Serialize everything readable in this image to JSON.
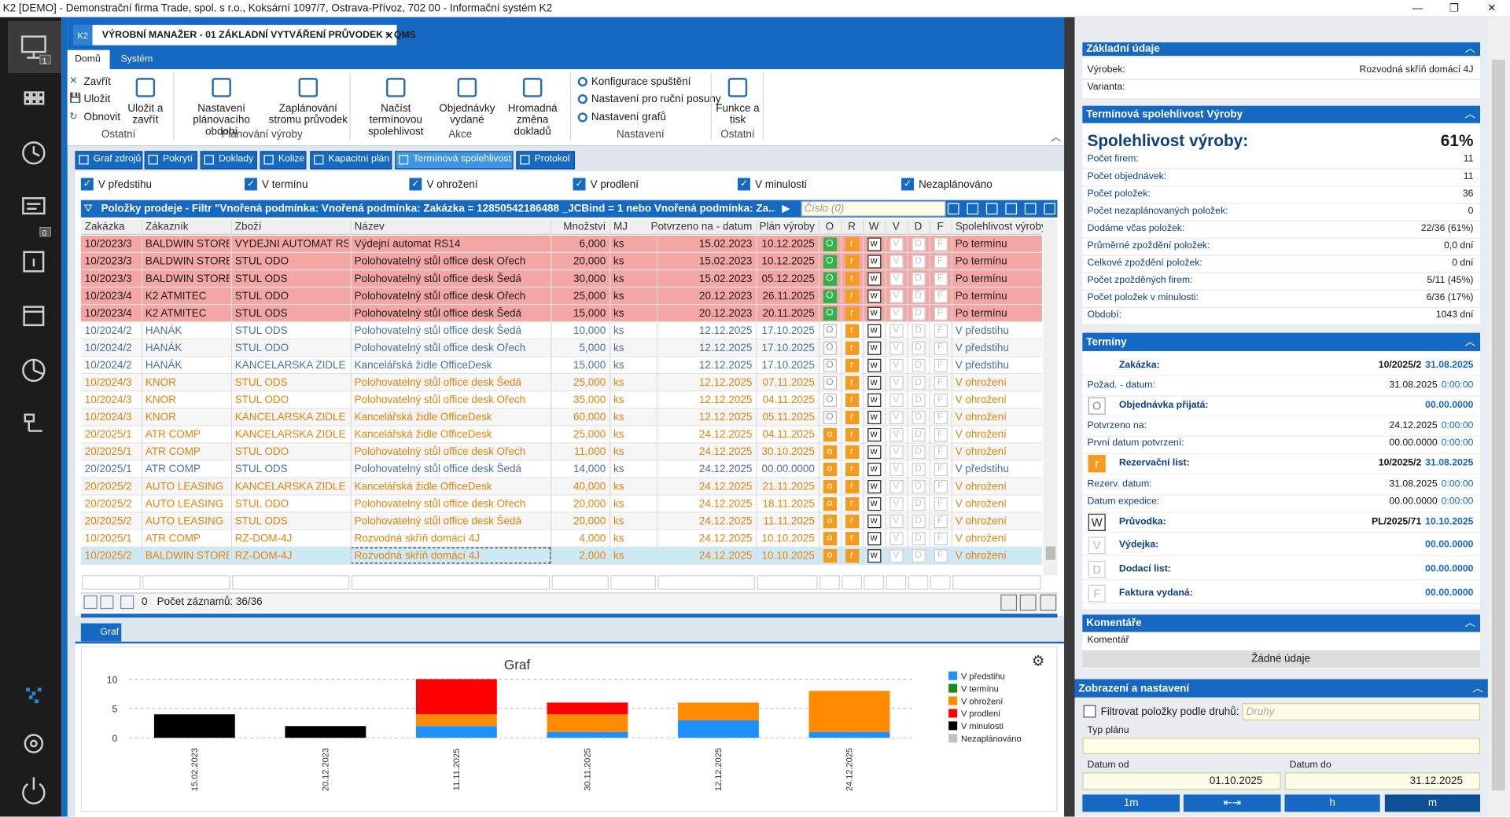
{
  "window": {
    "title": "K2 [DEMO] - Demonstrační firma Trade, spol. s r.o., Koksární 1097/7, Ostrava-Přívoz, 702 00 - Informační systém K2"
  },
  "sidebar": {
    "badges": [
      "1",
      "0"
    ]
  },
  "document_tab": {
    "badge": "K2",
    "title": "VÝROBNÍ MANAŽER - 01 ZÁKLADNÍ VYTVÁŘENÍ PRŮVODEK + QMS"
  },
  "ribbon": {
    "tabs": [
      "Domů",
      "Systém"
    ],
    "small_buttons": [
      "Zavřít",
      "Uložit",
      "Obnovit"
    ],
    "large_buttons": [
      "Uložit a zavřít",
      "Nastavení plánovacího období",
      "Zaplánování stromu průvodek",
      "Načíst termínovou spolehlivost",
      "Objednávky vydané",
      "Hromadná změna dokladů",
      "Funkce a tisk"
    ],
    "settings_buttons": [
      "Konfigurace spuštění",
      "Nastavení pro ruční posuny",
      "Nastavení grafů"
    ],
    "groups": [
      "Ostatní",
      "Plánování výroby",
      "Akce",
      "Nastavení",
      "Ostatní"
    ]
  },
  "view_tabs": [
    "Graf zdrojů",
    "Pokrytí",
    "Doklady",
    "Kolize",
    "Kapacitní plán",
    "Termínová spolehlivost",
    "Protokol"
  ],
  "status_filters": [
    "V předstihu",
    "V termínu",
    "V ohrožení",
    "V prodlení",
    "V minulosti",
    "Nezaplánováno"
  ],
  "filter_bar": {
    "text": "Položky prodeje - Filtr \"Vnořená podmínka: Vnořená podmínka: Zakázka = 12850542186488 _JCBind = 1 nebo Vnořená podmínka: Za...",
    "search": "Číslo (0)"
  },
  "table": {
    "columns": [
      "Zakázka",
      "Zákazník",
      "Zboží",
      "Název",
      "Množství",
      "MJ",
      "Potvrzeno na - datum",
      "Plán výroby",
      "O",
      "R",
      "W",
      "V",
      "D",
      "F",
      "Spolehlivost výroby"
    ],
    "rows": [
      [
        "10/2023/3",
        "BALDWIN STORE",
        "VYDEJNI AUTOMAT RS...",
        "Výdejní automat RS14",
        "6,000",
        "ks",
        "15.02.2023",
        "10.12.2025",
        "O",
        "r",
        "w",
        "V",
        "D",
        "F",
        "Po termínu"
      ],
      [
        "10/2023/3",
        "BALDWIN STORE",
        "STUL ODO",
        "Polohovatelný stůl office desk Ořech",
        "20,000",
        "ks",
        "15.02.2023",
        "10.12.2025",
        "O",
        "r",
        "w",
        "V",
        "D",
        "F",
        "Po termínu"
      ],
      [
        "10/2023/3",
        "BALDWIN STORE",
        "STUL ODS",
        "Polohovatelný stůl office desk Šedá",
        "30,000",
        "ks",
        "15.02.2023",
        "05.12.2025",
        "O",
        "r",
        "w",
        "V",
        "D",
        "F",
        "Po termínu"
      ],
      [
        "10/2023/4",
        "K2 ATMITEC",
        "STUL ODO",
        "Polohovatelný stůl office desk Ořech",
        "25,000",
        "ks",
        "20.12.2023",
        "26.11.2025",
        "O",
        "r",
        "w",
        "V",
        "D",
        "F",
        "Po termínu"
      ],
      [
        "10/2023/4",
        "K2 ATMITEC",
        "STUL ODS",
        "Polohovatelný stůl office desk Šedá",
        "15,000",
        "ks",
        "20.12.2023",
        "20.11.2025",
        "O",
        "r",
        "w",
        "V",
        "D",
        "F",
        "Po termínu"
      ],
      [
        "10/2024/2",
        "HANÁK",
        "STUL ODS",
        "Polohovatelný stůl office desk Šedá",
        "10,000",
        "ks",
        "12.12.2025",
        "17.10.2025",
        "O",
        "r",
        "w",
        "V",
        "D",
        "F",
        "V předstihu"
      ],
      [
        "10/2024/2",
        "HANÁK",
        "STUL ODO",
        "Polohovatelný stůl office desk Ořech",
        "5,000",
        "ks",
        "12.12.2025",
        "17.10.2025",
        "O",
        "r",
        "w",
        "V",
        "D",
        "F",
        "V předstihu"
      ],
      [
        "10/2024/2",
        "HANÁK",
        "KANCELARSKA ZIDLE",
        "Kancelářská židle OfficeDesk",
        "15,000",
        "ks",
        "12.12.2025",
        "17.10.2025",
        "O",
        "r",
        "w",
        "V",
        "D",
        "F",
        "V předstihu"
      ],
      [
        "10/2024/3",
        "KNOR",
        "STUL ODS",
        "Polohovatelný stůl office desk Šedá",
        "25,000",
        "ks",
        "12.12.2025",
        "07.11.2025",
        "O",
        "r",
        "w",
        "V",
        "D",
        "F",
        "V ohrožení"
      ],
      [
        "10/2024/3",
        "KNOR",
        "STUL ODO",
        "Polohovatelný stůl office desk Ořech",
        "35,000",
        "ks",
        "12.12.2025",
        "04.11.2025",
        "O",
        "r",
        "w",
        "V",
        "D",
        "F",
        "V ohrožení"
      ],
      [
        "10/2024/3",
        "KNOR",
        "KANCELARSKA ZIDLE",
        "Kancelářská židle OfficeDesk",
        "60,000",
        "ks",
        "12.12.2025",
        "05.11.2025",
        "O",
        "r",
        "w",
        "V",
        "D",
        "F",
        "V ohrožení"
      ],
      [
        "20/2025/1",
        "ATR COMP",
        "KANCELARSKA ZIDLE",
        "Kancelářská židle OfficeDesk",
        "25,000",
        "ks",
        "24.12.2025",
        "04.11.2025",
        "o",
        "r",
        "w",
        "V",
        "D",
        "F",
        "V ohrožení"
      ],
      [
        "20/2025/1",
        "ATR COMP",
        "STUL ODO",
        "Polohovatelný stůl office desk Ořech",
        "11,000",
        "ks",
        "24.12.2025",
        "30.10.2025",
        "o",
        "r",
        "w",
        "V",
        "D",
        "F",
        "V ohrožení"
      ],
      [
        "20/2025/1",
        "ATR COMP",
        "STUL ODS",
        "Polohovatelný stůl office desk Šedá",
        "14,000",
        "ks",
        "24.12.2025",
        "00.00.0000",
        "o",
        "r",
        "w",
        "V",
        "D",
        "F",
        "V předstihu"
      ],
      [
        "20/2025/2",
        "AUTO LEASING",
        "KANCELARSKA ZIDLE",
        "Kancelářská židle OfficeDesk",
        "40,000",
        "ks",
        "24.12.2025",
        "21.11.2025",
        "o",
        "r",
        "w",
        "V",
        "D",
        "F",
        "V ohrožení"
      ],
      [
        "20/2025/2",
        "AUTO LEASING",
        "STUL ODO",
        "Polohovatelný stůl office desk Ořech",
        "20,000",
        "ks",
        "24.12.2025",
        "18.11.2025",
        "o",
        "r",
        "w",
        "V",
        "D",
        "F",
        "V ohrožení"
      ],
      [
        "20/2025/2",
        "AUTO LEASING",
        "STUL ODS",
        "Polohovatelný stůl office desk Šedá",
        "20,000",
        "ks",
        "24.12.2025",
        "11.11.2025",
        "o",
        "r",
        "w",
        "V",
        "D",
        "F",
        "V ohrožení"
      ],
      [
        "10/2025/1",
        "ATR COMP",
        "RZ-DOM-4J",
        "Rozvodná skříň domácí 4J",
        "4,000",
        "ks",
        "24.12.2025",
        "10.10.2025",
        "o",
        "r",
        "w",
        "V",
        "D",
        "F",
        "V ohrožení"
      ],
      [
        "10/2025/2",
        "BALDWIN STORE",
        "RZ-DOM-4J",
        "Rozvodná skříň domácí 4J",
        "2,000",
        "ks",
        "24.12.2025",
        "10.10.2025",
        "o",
        "r",
        "w",
        "V",
        "D",
        "F",
        "V ohrožení"
      ]
    ],
    "row_colors": [
      [
        "#1a1a1a",
        "#f4a6a5",
        "#2fb24a"
      ],
      [
        "#1a1a1a",
        "#f4a6a5",
        "#2fb24a"
      ],
      [
        "#1a1a1a",
        "#f4a6a5",
        "#2fb24a"
      ],
      [
        "#1a1a1a",
        "#f4a6a5",
        "#2fb24a"
      ],
      [
        "#1a1a1a",
        "#f4a6a5",
        "#2fb24a"
      ],
      [
        "#4d6f9c",
        "#ffffff",
        "#ffffff"
      ],
      [
        "#4d6f9c",
        "#f6f6f6",
        "#ffffff"
      ],
      [
        "#4d6f9c",
        "#ffffff",
        "#ffffff"
      ],
      [
        "#e8820c",
        "#f6f6f6",
        "#ffffff"
      ],
      [
        "#e8820c",
        "#ffffff",
        "#ffffff"
      ],
      [
        "#e8820c",
        "#f6f6f6",
        "#ffffff"
      ],
      [
        "#e8820c",
        "#ffffff",
        "#f39c1f"
      ],
      [
        "#e8820c",
        "#f6f6f6",
        "#f39c1f"
      ],
      [
        "#4d6f9c",
        "#ffffff",
        "#f39c1f"
      ],
      [
        "#e8820c",
        "#f6f6f6",
        "#f39c1f"
      ],
      [
        "#e8820c",
        "#ffffff",
        "#f39c1f"
      ],
      [
        "#e8820c",
        "#f6f6f6",
        "#f39c1f"
      ],
      [
        "#e8820c",
        "#ffffff",
        "#f39c1f"
      ],
      [
        "#e8820c",
        "#cde9f6",
        "#f39c1f"
      ]
    ]
  },
  "footer": {
    "selected": "0",
    "count": "Počet záznamů: 36/36"
  },
  "chart_tab": "Graf",
  "chart_data": {
    "type": "bar",
    "stacked": true,
    "title": "Graf",
    "categories": [
      "15.02.2023",
      "20.12.2023",
      "11.11.2025",
      "30.11.2025",
      "12.12.2025",
      "24.12.2025"
    ],
    "series": [
      {
        "name": "V předstihu",
        "color": "#1e8fff",
        "values": [
          0,
          0,
          2,
          1,
          3,
          1
        ]
      },
      {
        "name": "V termínu",
        "color": "#1a8a1a",
        "values": [
          0,
          0,
          0,
          0,
          0,
          0
        ]
      },
      {
        "name": "V ohrožení",
        "color": "#ff8c00",
        "values": [
          0,
          0,
          2,
          3,
          3,
          7
        ]
      },
      {
        "name": "V prodlení",
        "color": "#ff0000",
        "values": [
          0,
          0,
          6,
          2,
          0,
          0
        ]
      },
      {
        "name": "V minulosti",
        "color": "#000000",
        "values": [
          4,
          2,
          0,
          0,
          0,
          0
        ]
      },
      {
        "name": "Nezaplánováno",
        "color": "#c0c0c0",
        "values": [
          0,
          0,
          0,
          0,
          0,
          0
        ]
      }
    ],
    "ylim": [
      0,
      10
    ],
    "yticks": [
      0,
      5,
      10
    ],
    "grid": true,
    "legend": "right"
  },
  "detail": {
    "basic": {
      "title": "Základní údaje",
      "rows": [
        [
          "Výrobek:",
          "Rozvodná skříň domácí 4J"
        ],
        [
          "Varianta:"
        ]
      ]
    },
    "reliability": {
      "title": "Termínová spolehlivost Výroby",
      "headline": [
        "Spolehlivost výroby:",
        "61%"
      ],
      "rows": [
        [
          "Počet firem:",
          "11"
        ],
        [
          "Počet objednávek:",
          "11"
        ],
        [
          "Počet položek:",
          "36"
        ],
        [
          "Počet nezaplánovaných položek:",
          "0"
        ],
        [
          "Dodáme včas položek:",
          "22/36 (61%)"
        ],
        [
          "Průměrné zpoždění položek:",
          "0,0 dní"
        ],
        [
          "Celkové zpoždění položek:",
          "0 dní"
        ],
        [
          "Počet zpožděných firem:",
          "5/11 (45%)"
        ],
        [
          "Počet položek v minulosti:",
          "6/36 (17%)"
        ],
        [
          "Období:",
          "1043 dní"
        ]
      ]
    },
    "terms": {
      "title": "Termíny",
      "rows": [
        {
          "label": "Zakázka:",
          "value": [
            "10/2025/2",
            "31.08.2025"
          ]
        },
        {
          "label": "Požad. - datum:",
          "value": [
            "31.08.2025",
            "0:00:00"
          ]
        },
        {
          "icon": "O",
          "label": "Objednávka přijatá:",
          "value": [
            "00.00.0000"
          ]
        },
        {
          "label": "Potvrzeno na:",
          "value": [
            "24.12.2025",
            "0:00:00"
          ]
        },
        {
          "label": "První datum potvrzení:",
          "value": [
            "00.00.0000",
            "0:00:00"
          ]
        },
        {
          "icon": "r",
          "label": "Rezervační list:",
          "value": [
            "10/2025/2",
            "31.08.2025"
          ]
        },
        {
          "label": "Rezerv. datum:",
          "value": [
            "31.08.2025",
            "0:00:00"
          ]
        },
        {
          "label": "Datum expedice:",
          "value": [
            "00.00.0000",
            "0:00:00"
          ]
        },
        {
          "icon": "W",
          "label": "Průvodka:",
          "value": [
            "PL/2025/71",
            "10.10.2025"
          ]
        },
        {
          "icon": "V",
          "label": "Výdejka:",
          "value": [
            "00.00.0000"
          ]
        },
        {
          "icon": "D",
          "label": "Dodací list:",
          "value": [
            "00.00.0000"
          ]
        },
        {
          "icon": "F",
          "label": "Faktura vydaná:",
          "value": [
            "00.00.0000"
          ]
        }
      ]
    },
    "comments": {
      "title": "Komentáře",
      "column": "Komentář",
      "empty": "Žádné údaje"
    },
    "settings": {
      "title": "Zobrazení a nastavení",
      "filter_label": "Filtrovat položky podle druhů:",
      "filter_placeholder": "Druhy",
      "plan_type": "Typ plánu",
      "date_from_label": "Datum od",
      "date_from": "01.10.2025",
      "date_to_label": "Datum do",
      "date_to": "31.12.2025",
      "buttons": [
        "1m",
        "⇤⇥",
        "h",
        "m"
      ]
    }
  }
}
